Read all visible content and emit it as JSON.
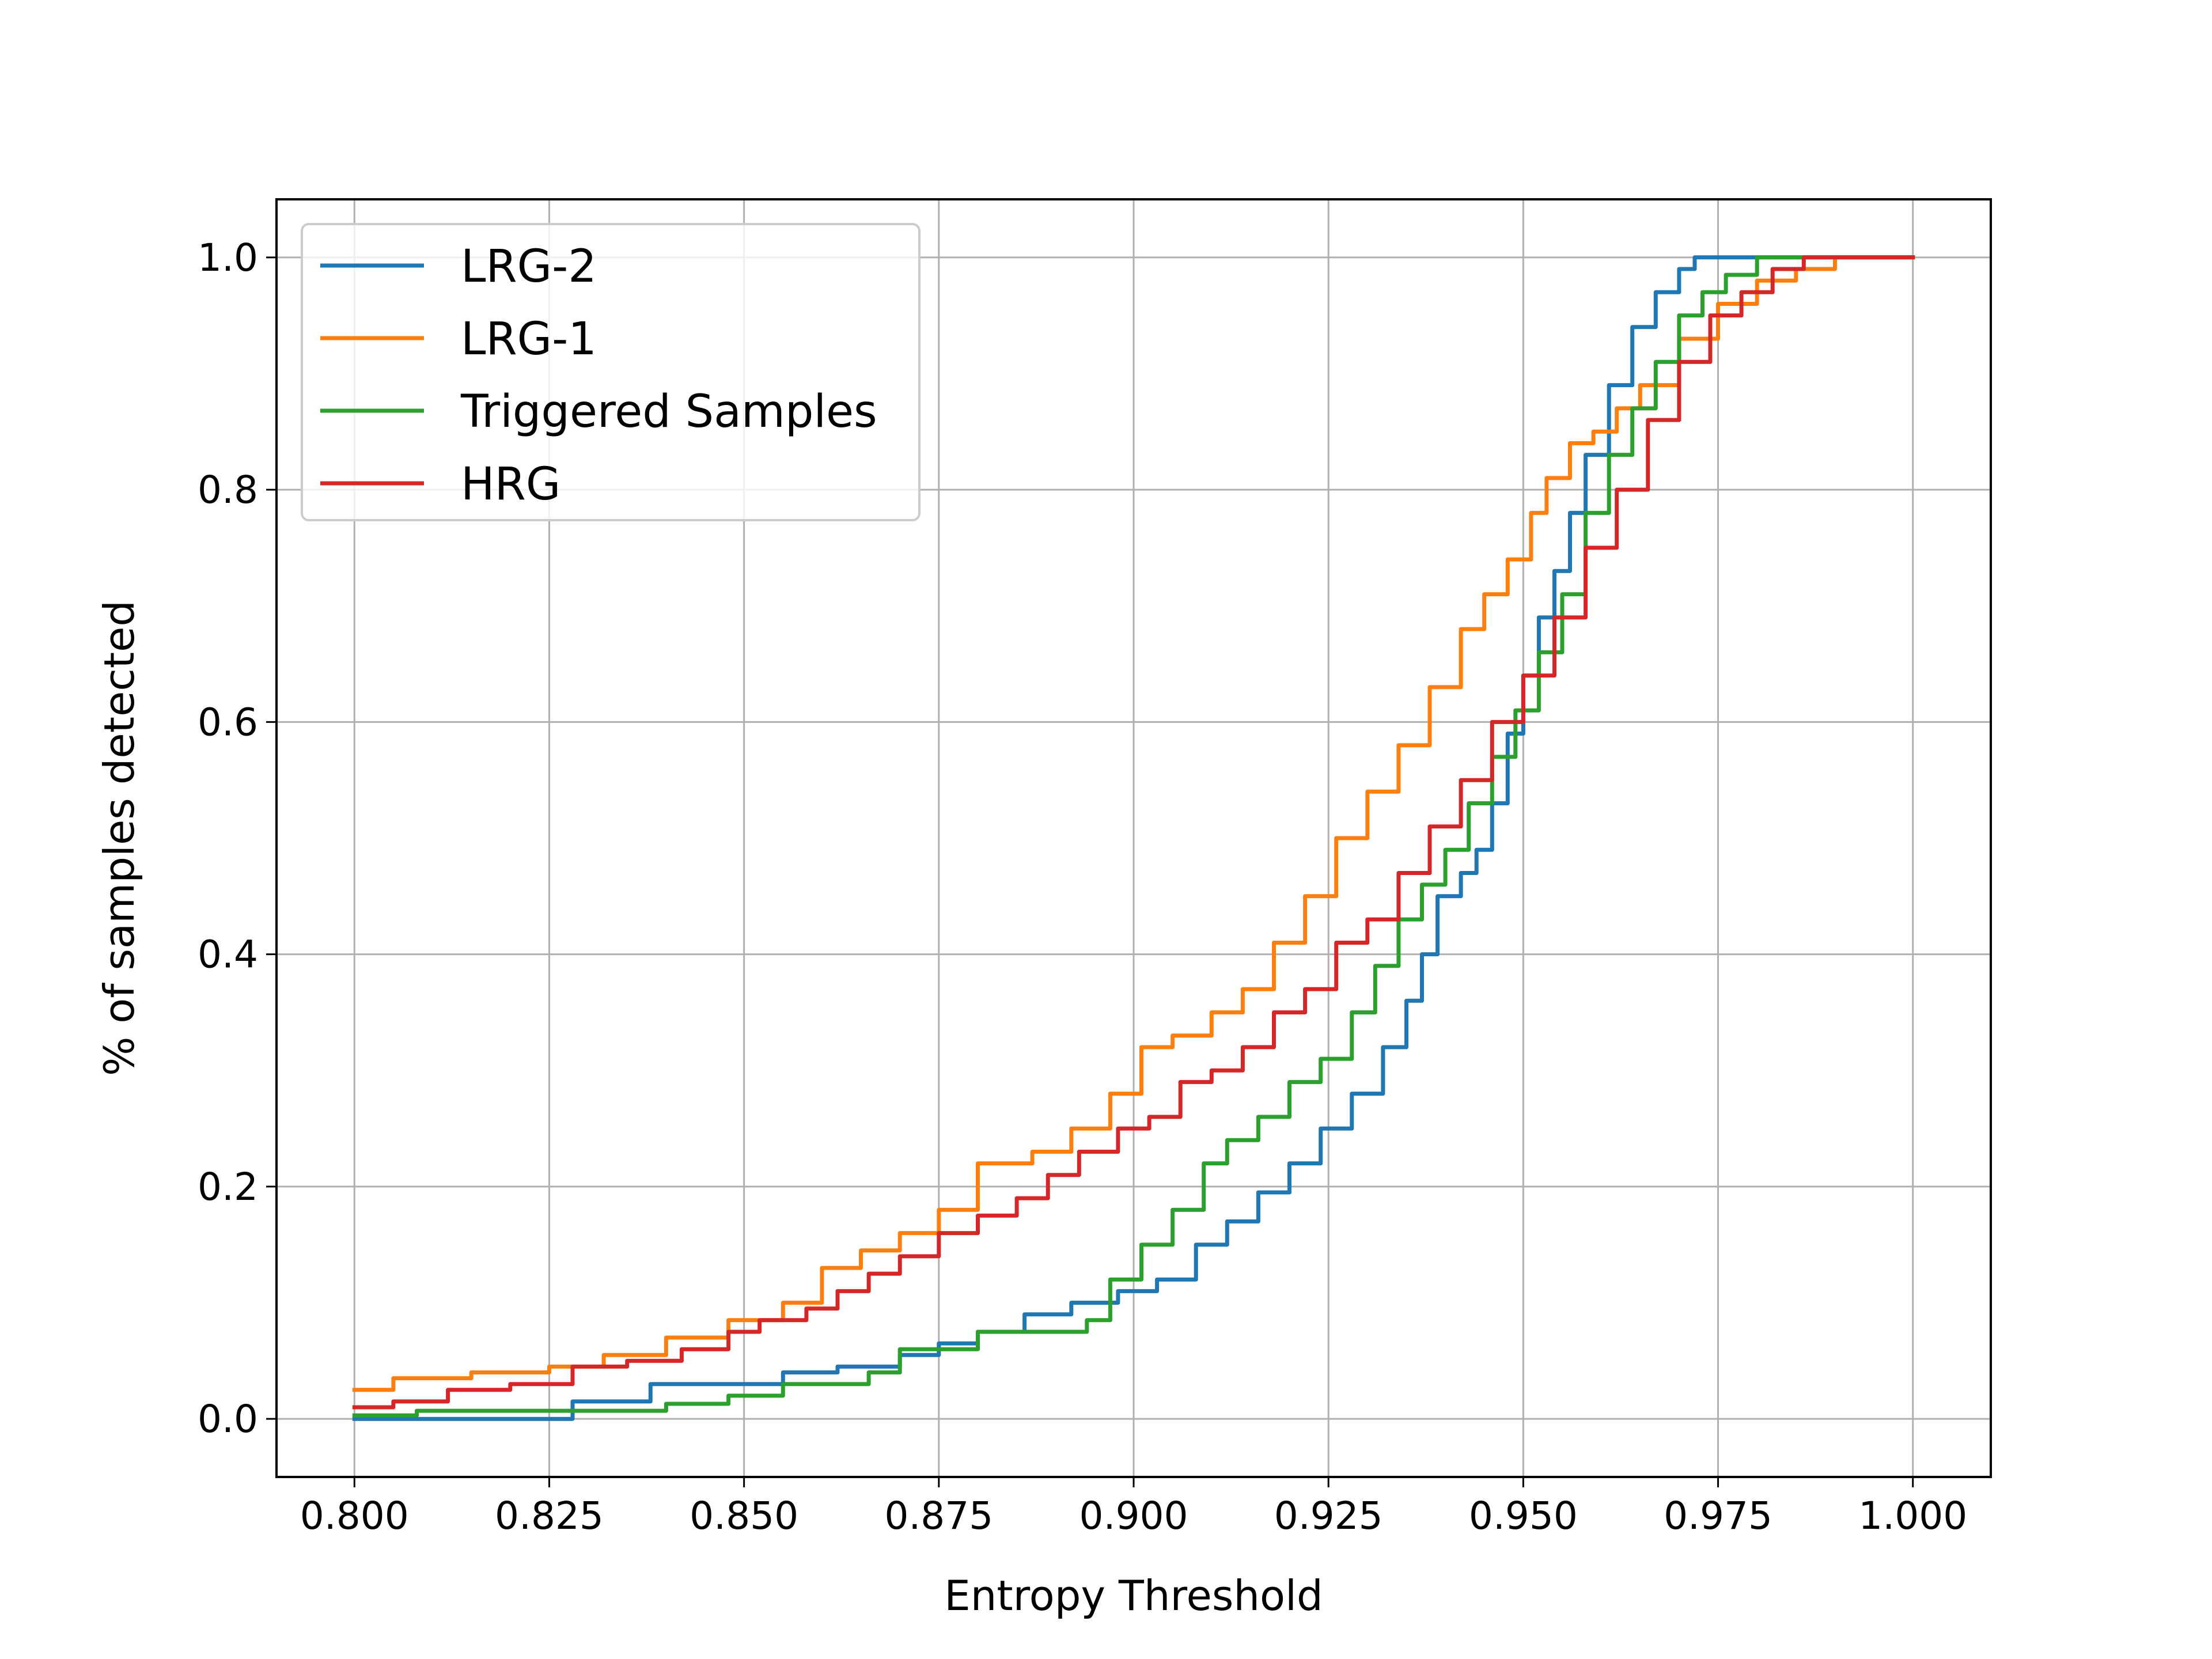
{
  "chart_data": {
    "type": "line",
    "xlabel": "Entropy Threshold",
    "ylabel": "% of samples detected",
    "xlim": [
      0.79,
      1.01
    ],
    "ylim": [
      -0.05,
      1.05
    ],
    "x_ticks": [
      "0.800",
      "0.825",
      "0.850",
      "0.875",
      "0.900",
      "0.925",
      "0.950",
      "0.975",
      "1.000"
    ],
    "y_ticks": [
      "0.0",
      "0.2",
      "0.4",
      "0.6",
      "0.8",
      "1.0"
    ],
    "grid": true,
    "legend_position": "upper-left",
    "series": [
      {
        "name": "LRG-2",
        "color": "#1f77b4",
        "x": [
          0.8,
          0.826,
          0.828,
          0.838,
          0.85,
          0.855,
          0.862,
          0.87,
          0.875,
          0.88,
          0.886,
          0.892,
          0.898,
          0.903,
          0.908,
          0.912,
          0.916,
          0.92,
          0.924,
          0.928,
          0.932,
          0.935,
          0.937,
          0.939,
          0.942,
          0.944,
          0.946,
          0.948,
          0.95,
          0.952,
          0.954,
          0.956,
          0.958,
          0.961,
          0.964,
          0.967,
          0.97,
          0.972,
          0.975,
          0.985,
          1.0
        ],
        "y": [
          0.0,
          0.0,
          0.015,
          0.03,
          0.03,
          0.04,
          0.045,
          0.055,
          0.065,
          0.075,
          0.09,
          0.1,
          0.11,
          0.12,
          0.15,
          0.17,
          0.195,
          0.22,
          0.25,
          0.28,
          0.32,
          0.36,
          0.4,
          0.45,
          0.47,
          0.49,
          0.53,
          0.59,
          0.64,
          0.69,
          0.73,
          0.78,
          0.83,
          0.89,
          0.94,
          0.97,
          0.99,
          1.0,
          1.0,
          1.0,
          1.0
        ]
      },
      {
        "name": "LRG-1",
        "color": "#ff7f0e",
        "x": [
          0.8,
          0.805,
          0.815,
          0.825,
          0.832,
          0.84,
          0.848,
          0.855,
          0.86,
          0.865,
          0.87,
          0.875,
          0.88,
          0.887,
          0.892,
          0.897,
          0.901,
          0.905,
          0.91,
          0.914,
          0.918,
          0.922,
          0.926,
          0.93,
          0.934,
          0.938,
          0.942,
          0.945,
          0.948,
          0.951,
          0.953,
          0.956,
          0.959,
          0.962,
          0.965,
          0.97,
          0.975,
          0.98,
          0.985,
          0.99,
          1.0
        ],
        "y": [
          0.025,
          0.035,
          0.04,
          0.045,
          0.055,
          0.07,
          0.085,
          0.1,
          0.13,
          0.145,
          0.16,
          0.18,
          0.22,
          0.23,
          0.25,
          0.28,
          0.32,
          0.33,
          0.35,
          0.37,
          0.41,
          0.45,
          0.5,
          0.54,
          0.58,
          0.63,
          0.68,
          0.71,
          0.74,
          0.78,
          0.81,
          0.84,
          0.85,
          0.87,
          0.89,
          0.93,
          0.96,
          0.98,
          0.99,
          1.0,
          1.0
        ]
      },
      {
        "name": "Triggered Samples",
        "color": "#2ca02c",
        "x": [
          0.8,
          0.808,
          0.83,
          0.84,
          0.848,
          0.855,
          0.866,
          0.87,
          0.88,
          0.894,
          0.897,
          0.901,
          0.905,
          0.909,
          0.912,
          0.916,
          0.92,
          0.924,
          0.928,
          0.931,
          0.934,
          0.937,
          0.94,
          0.943,
          0.946,
          0.949,
          0.952,
          0.955,
          0.958,
          0.961,
          0.964,
          0.967,
          0.97,
          0.973,
          0.976,
          0.98,
          0.985,
          1.0
        ],
        "y": [
          0.003,
          0.007,
          0.007,
          0.013,
          0.02,
          0.03,
          0.04,
          0.06,
          0.075,
          0.085,
          0.12,
          0.15,
          0.18,
          0.22,
          0.24,
          0.26,
          0.29,
          0.31,
          0.35,
          0.39,
          0.43,
          0.46,
          0.49,
          0.53,
          0.57,
          0.61,
          0.66,
          0.71,
          0.78,
          0.83,
          0.87,
          0.91,
          0.95,
          0.97,
          0.985,
          1.0,
          1.0,
          1.0
        ]
      },
      {
        "name": "HRG",
        "color": "#d62728",
        "x": [
          0.8,
          0.805,
          0.812,
          0.82,
          0.828,
          0.835,
          0.842,
          0.848,
          0.852,
          0.858,
          0.862,
          0.866,
          0.87,
          0.875,
          0.88,
          0.885,
          0.889,
          0.893,
          0.898,
          0.902,
          0.906,
          0.91,
          0.914,
          0.918,
          0.922,
          0.926,
          0.93,
          0.934,
          0.938,
          0.942,
          0.946,
          0.95,
          0.954,
          0.958,
          0.962,
          0.966,
          0.97,
          0.974,
          0.978,
          0.982,
          0.986,
          1.0
        ],
        "y": [
          0.01,
          0.015,
          0.025,
          0.03,
          0.045,
          0.05,
          0.06,
          0.075,
          0.085,
          0.095,
          0.11,
          0.125,
          0.14,
          0.16,
          0.175,
          0.19,
          0.21,
          0.23,
          0.25,
          0.26,
          0.29,
          0.3,
          0.32,
          0.35,
          0.37,
          0.41,
          0.43,
          0.47,
          0.51,
          0.55,
          0.6,
          0.64,
          0.69,
          0.75,
          0.8,
          0.86,
          0.91,
          0.95,
          0.97,
          0.99,
          1.0,
          1.0
        ]
      }
    ]
  }
}
